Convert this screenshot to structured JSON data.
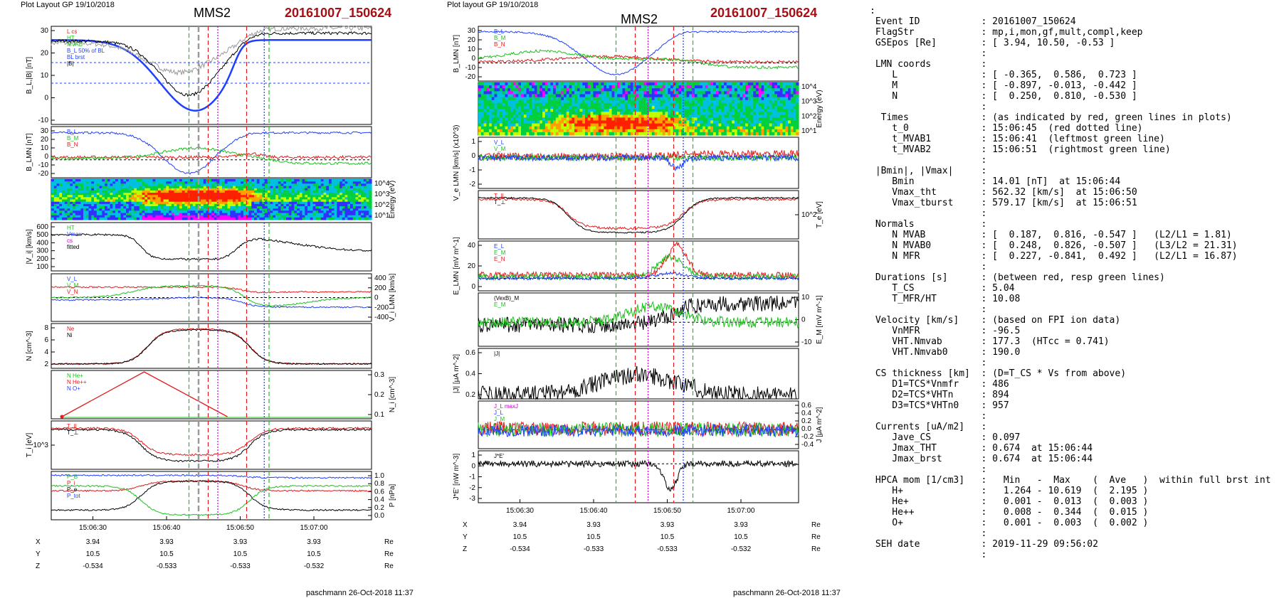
{
  "left_plot": {
    "header": "Plot Layout GP 19/10/2018",
    "spacecraft": "MMS2",
    "event": "20161007_150624",
    "footer": "paschmann 26-Oct-2018 11:37",
    "xticks": [
      "15:06:30",
      "15:06:40",
      "15:06:50",
      "15:07:00"
    ],
    "coords": {
      "rows": [
        {
          "label": "X",
          "values": [
            "3.94",
            "3.93",
            "3.93",
            "3.93"
          ],
          "unit": "Re"
        },
        {
          "label": "Y",
          "values": [
            "10.5",
            "10.5",
            "10.5",
            "10.5"
          ],
          "unit": "Re"
        },
        {
          "label": "Z",
          "values": [
            "-0.534",
            "-0.533",
            "-0.533",
            "-0.532"
          ],
          "unit": "Re"
        }
      ]
    },
    "panels": [
      {
        "ylabel": "B_L,|B| [nT]",
        "yticks": [
          "30",
          "20",
          "10",
          "0",
          "-10"
        ],
        "legend": [
          "L cs",
          "HT",
          "MVAB",
          "B_L 50% of BL",
          "BL brst",
          "|B|"
        ]
      },
      {
        "ylabel": "B_LMN [nT]",
        "yticks": [
          "30",
          "20",
          "10",
          "0",
          "-10",
          "-20"
        ],
        "legend": [
          "B_L",
          "B_M",
          "B_N"
        ]
      },
      {
        "ylabel": "Energy (eV)",
        "yticks": [
          "10^4",
          "10^3",
          "10^2",
          "10^1"
        ]
      },
      {
        "ylabel": "|V_i| [km/s]",
        "yticks": [
          "600",
          "500",
          "400",
          "300",
          "200",
          "100"
        ],
        "legend": [
          "HT",
          "Vmax",
          "cs",
          "fitted"
        ]
      },
      {
        "ylabel": "V_i LMN [km/s]",
        "yticks": [
          "400",
          "200",
          "0",
          "-200",
          "-400"
        ],
        "legend": [
          "V_L",
          "V_M",
          "V_N"
        ]
      },
      {
        "ylabel": "N [cm^-3]",
        "yticks": [
          "8",
          "6",
          "4",
          "2"
        ],
        "legend": [
          "Ne",
          "Ni"
        ]
      },
      {
        "ylabel": "N_i [cm^-3]",
        "yticks": [
          "0.3",
          "0.2",
          "0.1"
        ],
        "legend": [
          "N He+",
          "N He++",
          "N O+"
        ]
      },
      {
        "ylabel": "T_i [eV]",
        "yticks": [
          "10^3"
        ],
        "legend": [
          "T_||",
          "T_⊥"
        ]
      },
      {
        "ylabel": "P [nPa]",
        "yticks": [
          "1.0",
          "0.8",
          "0.6",
          "0.4",
          "0.2",
          "0.0"
        ],
        "legend": [
          "P_B",
          "P_i",
          "P_e",
          "P_tot"
        ]
      }
    ]
  },
  "right_plot": {
    "header": "Plot layout GP 19/10/2018",
    "spacecraft": "MMS2",
    "event": "20161007_150624",
    "footer": "paschmann 26-Oct-2018 11:37",
    "xticks": [
      "15:06:30",
      "15:06:40",
      "15:06:50",
      "15:07:00"
    ],
    "coords": {
      "rows": [
        {
          "label": "X",
          "values": [
            "3.94",
            "3.93",
            "3.93",
            "3.93"
          ],
          "unit": "Re"
        },
        {
          "label": "Y",
          "values": [
            "10.5",
            "10.5",
            "10.5",
            "10.5"
          ],
          "unit": "Re"
        },
        {
          "label": "Z",
          "values": [
            "-0.534",
            "-0.533",
            "-0.533",
            "-0.532"
          ],
          "unit": "Re"
        }
      ]
    },
    "panels": [
      {
        "ylabel": "B_LMN [nT]",
        "yticks": [
          "30",
          "20",
          "10",
          "0",
          "-10",
          "-20"
        ],
        "legend": [
          "B_L",
          "B_M",
          "B_N"
        ]
      },
      {
        "ylabel": "Energy (eV)",
        "yticks": [
          "10^4",
          "10^3",
          "10^2",
          "10^1"
        ]
      },
      {
        "ylabel": "V_e LMN [km/s] (x10^3)",
        "yticks": [
          "1",
          "0",
          "-1",
          "-2"
        ],
        "legend": [
          "V_L",
          "V_M",
          "V_N"
        ]
      },
      {
        "ylabel": "T_e [eV]",
        "yticks": [
          "10^2"
        ],
        "legend": [
          "T_||",
          "T_⊥"
        ]
      },
      {
        "ylabel": "E_LMN [mV m^-1]",
        "yticks": [
          "40",
          "20",
          "0"
        ],
        "legend": [
          "E_L",
          "E_M",
          "E_N"
        ]
      },
      {
        "ylabel": "E_M [mV m^-1]",
        "yticks": [
          "10",
          "0",
          "-10"
        ],
        "legend": [
          "(VexB)_M",
          "E_M"
        ]
      },
      {
        "ylabel": "|J| [μA m^-2]",
        "yticks": [
          "0.6",
          "0.4",
          "0.2"
        ],
        "legend": [
          "|J|"
        ]
      },
      {
        "ylabel": "J [μA m^-2]",
        "yticks": [
          "0.6",
          "0.4",
          "0.2",
          "0.0",
          "-0.2",
          "-0.4"
        ],
        "legend": [
          "J_L maxJ",
          "J_L",
          "J_M",
          "J_N"
        ]
      },
      {
        "ylabel": "J*E' [nW m^-3]",
        "yticks": [
          "1",
          "0",
          "-1",
          "-2",
          "-3"
        ],
        "legend": [
          "J*E'"
        ]
      }
    ]
  },
  "colors": {
    "red": "#e31a1c",
    "green": "#1fbf1f",
    "blue": "#1f3fff",
    "magenta": "#d000d0",
    "black": "#000000",
    "title_red": "#a50f15",
    "grey": "#9a9a9a"
  },
  "summary": {
    "lines": [
      ":",
      " Event ID           : 20161007_150624",
      " FlagStr            : mp,i,mon,gf,mult,compl,keep",
      " GSEpos [Re]        : [ 3.94, 10.50, -0.53 ]",
      "                    :",
      " LMN coords         :",
      "    L               : [ -0.365,  0.586,  0.723 ]",
      "    M               : [ -0.897, -0.013, -0.442 ]",
      "    N               : [  0.250,  0.810, -0.530 ]",
      "                    :",
      "  Times             : (as indicated by red, green lines in plots)",
      "    t_0             : 15:06:45  (red dotted line)",
      "    t_MVAB1         : 15:06:41  (leftmost green line)",
      "    t_MVAB2         : 15:06:51  (rightmost green line)",
      "                    :",
      " |Bmin|, |Vmax|     :",
      "    Bmin            : 14.01 [nT]  at 15:06:44",
      "    Vmax_tht        : 562.32 [km/s]  at 15:06:50",
      "    Vmax_tburst     : 579.17 [km/s]  at 15:06:51",
      "                    :",
      " Normals            :",
      "    N MVAB          : [  0.187,  0.816, -0.547 ]   (L2/L1 = 1.81)",
      "    N MVAB0         : [  0.248,  0.826, -0.507 ]   (L3/L2 = 21.31)",
      "    N MFR           : [  0.227, -0.841,  0.492 ]   (L2/L1 = 16.87)",
      "                    :",
      " Durations [s]      : (between red, resp green lines)",
      "    T_CS            : 5.04",
      "    T_MFR/HT        : 10.08",
      "                    :",
      " Velocity [km/s]    : (based on FPI ion data)",
      "    VnMFR           : -96.5",
      "    VHT.Nmvab       : 177.3  (HTcc = 0.741)",
      "    VHT.Nmvab0      : 190.0",
      "                    :",
      " CS thickness [km]  : (D=T_CS * Vs from above)",
      "    D1=TCS*Vnmfr    : 486",
      "    D2=TCS*VHTn     : 894",
      "    D3=TCS*VHTn0    : 957",
      "                    :",
      " Currents [uA/m2]   :",
      "    Jave_CS         : 0.097",
      "    Jmax_THT        : 0.674  at 15:06:44",
      "    Jmax_brst       : 0.674  at 15:06:44",
      "                    :",
      " HPCA mom [1/cm3]   :   Min   -  Max    (  Ave   )  within full brst int",
      "    H+              :   1.264 - 10.619  (  2.195 )",
      "    He+             :   0.001 -  0.013  (  0.003 )",
      "    He++            :   0.008 -  0.344  (  0.015 )",
      "    O+              :   0.001 -  0.003  (  0.002 )",
      "                    :",
      " SEH date           : 2019-11-29 09:56:02",
      "                    :"
    ]
  }
}
